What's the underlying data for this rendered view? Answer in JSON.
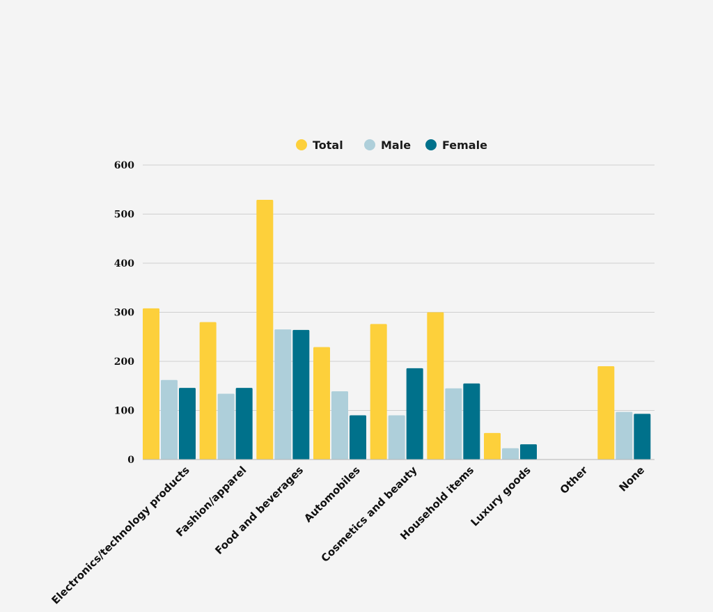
{
  "chart_data": {
    "type": "bar",
    "categories": [
      "Electronics/technology products",
      "Fashion/apparel",
      "Food and beverages",
      "Automobiles",
      "Cosmetics and beauty",
      "Household items",
      "Luxury goods",
      "Other",
      "None"
    ],
    "series": [
      {
        "name": "Total",
        "color": "#fdd03b",
        "values": [
          308,
          280,
          529,
          229,
          276,
          300,
          54,
          0,
          190
        ]
      },
      {
        "name": "Male",
        "color": "#aecfda",
        "values": [
          162,
          134,
          265,
          139,
          90,
          145,
          23,
          0,
          97
        ]
      },
      {
        "name": "Female",
        "color": "#00718b",
        "values": [
          146,
          146,
          264,
          90,
          186,
          155,
          31,
          0,
          93
        ]
      }
    ],
    "yticks": [
      0,
      100,
      200,
      300,
      400,
      500,
      600
    ],
    "ylim": [
      0,
      600
    ],
    "grid": true,
    "legend_position": "top-center",
    "title": "",
    "xlabel": "",
    "ylabel": ""
  }
}
